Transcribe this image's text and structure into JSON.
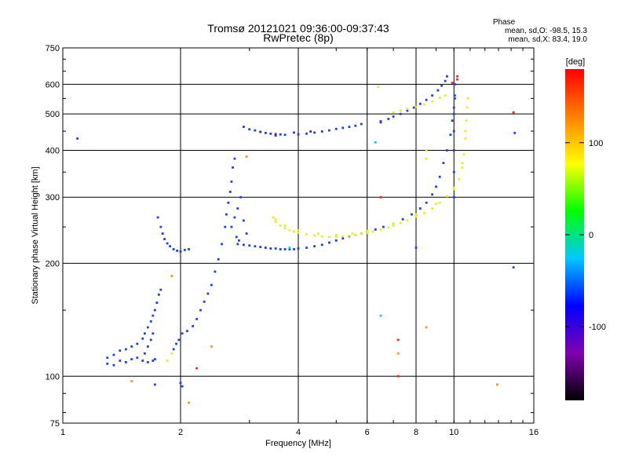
{
  "chart_data": {
    "type": "scatter",
    "title": "Tromsø 20121021 09:36:00-09:37:43",
    "subtitle": "RwPretec (8p)",
    "xlabel": "Frequency [MHz]",
    "ylabel": "Stationary phase Virtual Height [km]",
    "xscale": "log",
    "yscale": "log",
    "xlim": [
      1,
      16
    ],
    "ylim": [
      75,
      750
    ],
    "xticks": [
      "1",
      "2",
      "4",
      "6",
      "8",
      "10",
      "16"
    ],
    "yticks": [
      "75",
      "100",
      "200",
      "300",
      "400",
      "500",
      "600",
      "750"
    ],
    "grid": true,
    "info_heading": "Phase",
    "info_lines": [
      "mean, sd,O: -98.5, 15.3",
      "mean, sd,X:  83.4, 19.0"
    ],
    "colorbar": {
      "label": "[deg]",
      "range": [
        -180,
        180
      ],
      "ticks": [
        "100",
        "0",
        "-100"
      ],
      "colors": [
        "#000000",
        "#8000b0",
        "#0000ff",
        "#00c8ff",
        "#00ff00",
        "#ffff00",
        "#ff8000",
        "#ff0000"
      ]
    },
    "series": [
      {
        "color": "#1f3fe0",
        "points": [
          [
            1.3,
            108
          ],
          [
            1.35,
            107
          ],
          [
            1.4,
            110
          ],
          [
            1.45,
            109
          ],
          [
            1.5,
            111
          ],
          [
            1.55,
            112
          ],
          [
            1.6,
            110
          ],
          [
            1.65,
            109
          ],
          [
            1.7,
            110
          ],
          [
            1.72,
            111
          ],
          [
            1.3,
            112
          ],
          [
            1.35,
            114
          ],
          [
            1.4,
            117
          ],
          [
            1.45,
            118
          ],
          [
            1.5,
            120
          ],
          [
            1.55,
            122
          ],
          [
            1.6,
            126
          ],
          [
            1.62,
            130
          ],
          [
            1.65,
            135
          ],
          [
            1.68,
            140
          ],
          [
            1.7,
            145
          ],
          [
            1.72,
            150
          ],
          [
            1.74,
            157
          ],
          [
            1.76,
            165
          ],
          [
            1.78,
            170
          ],
          [
            1.62,
            115
          ],
          [
            1.65,
            120
          ],
          [
            1.68,
            125
          ],
          [
            1.7,
            130
          ],
          [
            1.75,
            265
          ],
          [
            1.78,
            250
          ],
          [
            1.8,
            240
          ],
          [
            1.82,
            232
          ],
          [
            1.85,
            226
          ],
          [
            1.88,
            222
          ],
          [
            1.92,
            218
          ],
          [
            1.96,
            216
          ],
          [
            2.0,
            215
          ],
          [
            2.05,
            217
          ],
          [
            2.1,
            218
          ],
          [
            1.92,
            118
          ],
          [
            1.95,
            122
          ],
          [
            1.98,
            125
          ],
          [
            2.02,
            130
          ],
          [
            2.08,
            132
          ],
          [
            2.15,
            136
          ],
          [
            2.2,
            142
          ],
          [
            2.25,
            150
          ],
          [
            2.3,
            158
          ],
          [
            2.35,
            166
          ],
          [
            2.4,
            175
          ],
          [
            2.45,
            190
          ],
          [
            2.5,
            205
          ],
          [
            2.55,
            225
          ],
          [
            2.6,
            250
          ],
          [
            2.62,
            270
          ],
          [
            2.65,
            290
          ],
          [
            2.68,
            310
          ],
          [
            2.7,
            330
          ],
          [
            2.72,
            360
          ],
          [
            2.75,
            380
          ],
          [
            2.7,
            250
          ],
          [
            2.75,
            265
          ],
          [
            2.8,
            280
          ],
          [
            2.85,
            300
          ],
          [
            2.9,
            260
          ],
          [
            2.95,
            240
          ],
          [
            2.78,
            235
          ],
          [
            2.82,
            230
          ],
          [
            2.8,
            225
          ],
          [
            2.9,
            224
          ],
          [
            3.0,
            223
          ],
          [
            3.1,
            222
          ],
          [
            3.2,
            221
          ],
          [
            3.3,
            220
          ],
          [
            3.4,
            219
          ],
          [
            3.5,
            219
          ],
          [
            3.6,
            218
          ],
          [
            3.7,
            218
          ],
          [
            3.8,
            218
          ],
          [
            3.9,
            218
          ],
          [
            4.0,
            219
          ],
          [
            4.2,
            220
          ],
          [
            4.4,
            222
          ],
          [
            4.6,
            224
          ],
          [
            4.8,
            227
          ],
          [
            5.0,
            230
          ],
          [
            5.2,
            233
          ],
          [
            5.4,
            236
          ],
          [
            5.6,
            238
          ],
          [
            5.8,
            240
          ],
          [
            6.0,
            242
          ],
          [
            6.3,
            246
          ],
          [
            6.6,
            250
          ],
          [
            7.0,
            255
          ],
          [
            7.4,
            262
          ],
          [
            7.8,
            270
          ],
          [
            8.2,
            280
          ],
          [
            8.5,
            290
          ],
          [
            8.8,
            305
          ],
          [
            9.0,
            320
          ],
          [
            9.2,
            340
          ],
          [
            9.4,
            370
          ],
          [
            9.6,
            400
          ],
          [
            9.8,
            440
          ],
          [
            9.9,
            480
          ],
          [
            10.0,
            520
          ],
          [
            10.05,
            560
          ],
          [
            10.0,
            300
          ],
          [
            10.0,
            350
          ],
          [
            10.0,
            400
          ],
          [
            10.0,
            450
          ],
          [
            10.0,
            500
          ],
          [
            10.05,
            550
          ],
          [
            10.05,
            600
          ],
          [
            2.9,
            462
          ],
          [
            3.0,
            455
          ],
          [
            3.1,
            452
          ],
          [
            3.2,
            448
          ],
          [
            3.3,
            445
          ],
          [
            3.4,
            443
          ],
          [
            3.5,
            442
          ],
          [
            3.6,
            441
          ],
          [
            3.7,
            440
          ],
          [
            4.0,
            441
          ],
          [
            4.2,
            443
          ],
          [
            4.4,
            446
          ],
          [
            4.6,
            449
          ],
          [
            4.8,
            452
          ],
          [
            5.0,
            456
          ],
          [
            5.2,
            459
          ],
          [
            5.4,
            462
          ],
          [
            5.6,
            465
          ],
          [
            5.8,
            470
          ],
          [
            6.5,
            478
          ],
          [
            6.8,
            485
          ],
          [
            7.0,
            492
          ],
          [
            7.3,
            500
          ],
          [
            7.6,
            510
          ],
          [
            7.9,
            520
          ],
          [
            8.2,
            532
          ],
          [
            8.5,
            545
          ],
          [
            8.8,
            560
          ],
          [
            9.1,
            578
          ],
          [
            9.3,
            595
          ],
          [
            9.5,
            612
          ],
          [
            9.6,
            630
          ],
          [
            1.09,
            430
          ],
          [
            1.72,
            95
          ],
          [
            2.0,
            96
          ],
          [
            2.02,
            94
          ],
          [
            8.0,
            220
          ],
          [
            14.2,
            195
          ],
          [
            14.3,
            445
          ]
        ]
      },
      {
        "color": "#e0f020",
        "points": [
          [
            3.45,
            265
          ],
          [
            3.5,
            258
          ],
          [
            3.6,
            252
          ],
          [
            3.7,
            248
          ],
          [
            3.8,
            245
          ],
          [
            3.9,
            243
          ],
          [
            4.0,
            241
          ],
          [
            4.2,
            239
          ],
          [
            4.4,
            237
          ],
          [
            4.6,
            236
          ],
          [
            4.8,
            235
          ],
          [
            5.0,
            235
          ],
          [
            5.2,
            236
          ],
          [
            5.4,
            237
          ],
          [
            5.6,
            238
          ],
          [
            5.8,
            240
          ],
          [
            6.0,
            241
          ],
          [
            6.2,
            243
          ],
          [
            6.5,
            246
          ],
          [
            6.8,
            249
          ],
          [
            7.0,
            252
          ],
          [
            7.3,
            256
          ],
          [
            7.6,
            260
          ],
          [
            8.0,
            266
          ],
          [
            8.4,
            272
          ],
          [
            8.8,
            280
          ],
          [
            9.2,
            290
          ],
          [
            9.6,
            302
          ],
          [
            10.0,
            318
          ],
          [
            10.3,
            335
          ],
          [
            10.5,
            360
          ],
          [
            10.6,
            390
          ],
          [
            10.7,
            430
          ],
          [
            10.75,
            480
          ],
          [
            10.8,
            520
          ],
          [
            10.85,
            550
          ],
          [
            3.5,
            262
          ],
          [
            3.7,
            252
          ],
          [
            4.0,
            245
          ],
          [
            4.5,
            240
          ],
          [
            5.0,
            238
          ],
          [
            5.5,
            240
          ],
          [
            6.0,
            244
          ],
          [
            7.0,
            255
          ],
          [
            8.0,
            270
          ],
          [
            9.0,
            288
          ],
          [
            10.0,
            315
          ],
          [
            10.5,
            370
          ],
          [
            10.7,
            450
          ],
          [
            7.0,
            505
          ],
          [
            7.3,
            510
          ],
          [
            7.6,
            516
          ],
          [
            8.0,
            522
          ],
          [
            8.4,
            530
          ],
          [
            8.8,
            540
          ],
          [
            9.2,
            552
          ],
          [
            9.5,
            560
          ],
          [
            6.4,
            590
          ],
          [
            8.5,
            400
          ],
          [
            8.5,
            380
          ],
          [
            1.85,
            110
          ],
          [
            1.9,
            115
          ]
        ]
      },
      {
        "color": "#ff2020",
        "points": [
          [
            10.2,
            618
          ],
          [
            10.2,
            630
          ],
          [
            9.9,
            605
          ],
          [
            7.2,
            125
          ],
          [
            6.5,
            300
          ],
          [
            2.2,
            105
          ],
          [
            14.2,
            505
          ],
          [
            7.2,
            100
          ]
        ]
      },
      {
        "color": "#ff9020",
        "points": [
          [
            2.95,
            385
          ],
          [
            1.5,
            97
          ],
          [
            2.1,
            85
          ],
          [
            1.9,
            185
          ],
          [
            2.4,
            120
          ],
          [
            8.5,
            135
          ],
          [
            12.9,
            95
          ],
          [
            7.2,
            115
          ]
        ]
      },
      {
        "color": "#5020b0",
        "points": [
          [
            3.5,
            438
          ],
          [
            3.9,
            446
          ],
          [
            4.3,
            449
          ],
          [
            3.2,
            448
          ],
          [
            6.5,
            475
          ]
        ]
      },
      {
        "color": "#00d0ff",
        "points": [
          [
            6.5,
            145
          ],
          [
            3.8,
            220
          ],
          [
            6.3,
            420
          ]
        ]
      }
    ]
  }
}
